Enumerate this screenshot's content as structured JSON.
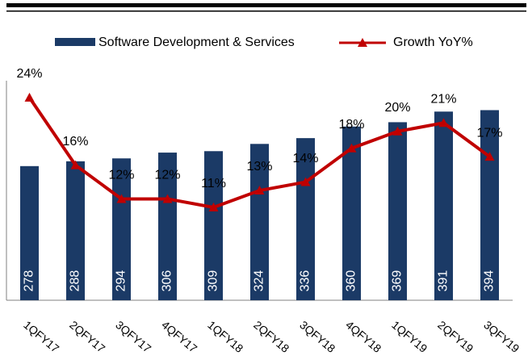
{
  "chart_data": {
    "type": "bar-line",
    "categories": [
      "1QFY17",
      "2QFY17",
      "3QFY17",
      "4QFY17",
      "1QFY18",
      "2QFY18",
      "3QFY18",
      "4QFY18",
      "1QFY19",
      "2QFY19",
      "3QFY19"
    ],
    "series": [
      {
        "name": "Software Development & Services",
        "color": "#1b3a66",
        "type": "bar",
        "values": [
          278,
          288,
          294,
          306,
          309,
          324,
          336,
          360,
          369,
          391,
          394
        ]
      },
      {
        "name": "Growth YoY%",
        "color": "#c00000",
        "type": "line",
        "axis": "y2",
        "values": [
          24,
          16,
          12,
          12,
          11,
          13,
          14,
          18,
          20,
          21,
          17
        ],
        "value_labels": [
          "24%",
          "16%",
          "12%",
          "12%",
          "11%",
          "13%",
          "14%",
          "18%",
          "20%",
          "21%",
          "17%"
        ]
      }
    ],
    "ylim": [
      0,
      455
    ],
    "y2lim": [
      0,
      26
    ]
  }
}
